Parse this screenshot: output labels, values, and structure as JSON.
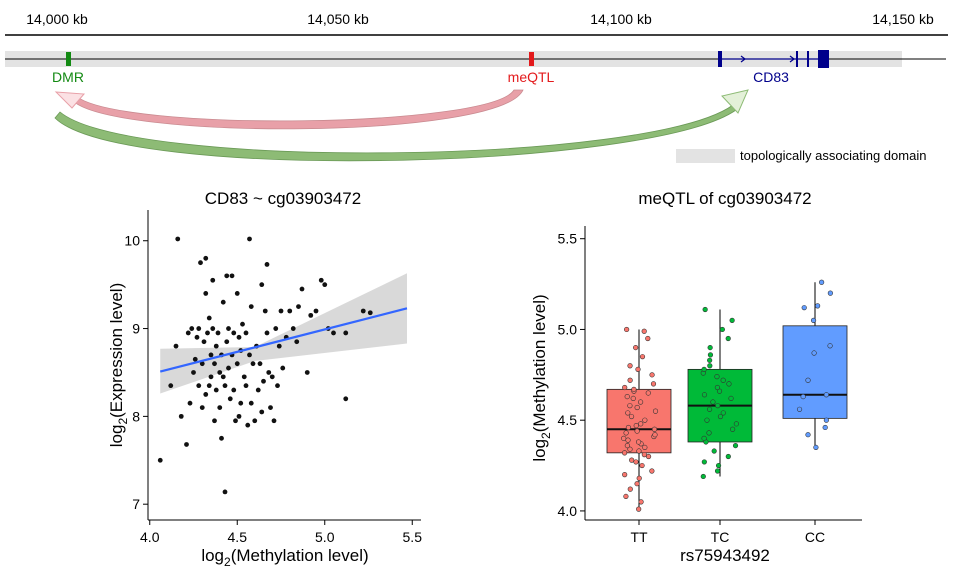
{
  "genome_track": {
    "tick_labels": [
      "14,000 kb",
      "14,050 kb",
      "14,100 kb",
      "14,150 kb"
    ],
    "tick_positions_kb": [
      14000,
      14050,
      14100,
      14150
    ],
    "minor_tick_positions_kb": [
      14025,
      14075,
      14125
    ],
    "features": [
      {
        "label": "DMR",
        "position_kb": 14000,
        "color": "#138a13"
      },
      {
        "label": "meQTL",
        "position_kb": 14084,
        "color": "#e31a1c"
      },
      {
        "label": "CD83",
        "position_kb": 14117,
        "color": "#00008b"
      }
    ],
    "arrows": [
      {
        "from": "meQTL",
        "to": "DMR",
        "color": "#e8a0a8"
      },
      {
        "from": "DMR",
        "to": "CD83",
        "color": "#8dbb75"
      }
    ],
    "legend_label": "topologically associating domain",
    "tad_color": "#e3e3e3"
  },
  "chart_data": [
    {
      "type": "scatter",
      "title": "CD83 ~ cg03903472",
      "xlabel_base": "log",
      "xlabel_sub": "2",
      "xlabel_rest": "(Methylation level)",
      "ylabel_base": "log",
      "ylabel_sub": "2",
      "ylabel_rest": "(Expression level)",
      "xlim": [
        3.99,
        5.55
      ],
      "ylim": [
        6.82,
        10.35
      ],
      "xticks": [
        4.0,
        4.5,
        5.0,
        5.5
      ],
      "xtick_labels": [
        "4.0",
        "4.5",
        "5.0",
        "5.5"
      ],
      "yticks": [
        7,
        8,
        9,
        10
      ],
      "ytick_labels": [
        "7",
        "8",
        "9",
        "10"
      ],
      "point_color": "#111111",
      "fit_line": {
        "x": [
          4.06,
          5.47
        ],
        "y": [
          8.51,
          9.23
        ],
        "color": "#3366ff"
      },
      "ci_band": {
        "x": [
          4.06,
          4.6,
          5.47
        ],
        "lower": [
          8.26,
          8.63,
          8.83
        ],
        "upper": [
          8.77,
          8.79,
          9.63
        ],
        "color": "#cccccc"
      },
      "points": [
        [
          4.06,
          7.5
        ],
        [
          4.12,
          8.35
        ],
        [
          4.16,
          10.02
        ],
        [
          4.18,
          8.0
        ],
        [
          4.21,
          7.68
        ],
        [
          4.15,
          8.8
        ],
        [
          4.23,
          8.15
        ],
        [
          4.22,
          8.95
        ],
        [
          4.24,
          9.0
        ],
        [
          4.25,
          8.5
        ],
        [
          4.26,
          8.65
        ],
        [
          4.27,
          8.9
        ],
        [
          4.28,
          8.35
        ],
        [
          4.28,
          9.0
        ],
        [
          4.29,
          9.75
        ],
        [
          4.3,
          8.1
        ],
        [
          4.3,
          8.6
        ],
        [
          4.31,
          8.85
        ],
        [
          4.32,
          9.8
        ],
        [
          4.32,
          9.4
        ],
        [
          4.32,
          8.25
        ],
        [
          4.33,
          8.95
        ],
        [
          4.34,
          9.12
        ],
        [
          4.34,
          8.35
        ],
        [
          4.35,
          8.7
        ],
        [
          4.35,
          8.45
        ],
        [
          4.36,
          9.55
        ],
        [
          4.36,
          9.0
        ],
        [
          4.37,
          8.6
        ],
        [
          4.37,
          7.95
        ],
        [
          4.38,
          8.8
        ],
        [
          4.38,
          8.3
        ],
        [
          4.39,
          8.95
        ],
        [
          4.4,
          8.5
        ],
        [
          4.4,
          8.1
        ],
        [
          4.41,
          8.7
        ],
        [
          4.41,
          7.75
        ],
        [
          4.42,
          9.3
        ],
        [
          4.42,
          8.45
        ],
        [
          4.43,
          7.14
        ],
        [
          4.43,
          8.35
        ],
        [
          4.44,
          9.6
        ],
        [
          4.44,
          8.85
        ],
        [
          4.45,
          9.0
        ],
        [
          4.45,
          8.55
        ],
        [
          4.46,
          8.2
        ],
        [
          4.47,
          9.6
        ],
        [
          4.47,
          8.7
        ],
        [
          4.48,
          8.95
        ],
        [
          4.48,
          8.3
        ],
        [
          4.49,
          7.95
        ],
        [
          4.5,
          9.4
        ],
        [
          4.5,
          8.6
        ],
        [
          4.51,
          8.0
        ],
        [
          4.51,
          8.9
        ],
        [
          4.52,
          8.75
        ],
        [
          4.52,
          8.15
        ],
        [
          4.53,
          9.05
        ],
        [
          4.54,
          8.45
        ],
        [
          4.55,
          8.35
        ],
        [
          4.55,
          8.95
        ],
        [
          4.56,
          7.9
        ],
        [
          4.57,
          10.02
        ],
        [
          4.57,
          8.7
        ],
        [
          4.58,
          8.15
        ],
        [
          4.58,
          9.25
        ],
        [
          4.59,
          8.6
        ],
        [
          4.6,
          7.95
        ],
        [
          4.61,
          8.8
        ],
        [
          4.62,
          8.3
        ],
        [
          4.63,
          8.6
        ],
        [
          4.64,
          9.5
        ],
        [
          4.64,
          8.05
        ],
        [
          4.65,
          8.4
        ],
        [
          4.66,
          9.2
        ],
        [
          4.67,
          9.73
        ],
        [
          4.67,
          8.95
        ],
        [
          4.68,
          8.5
        ],
        [
          4.69,
          8.1
        ],
        [
          4.7,
          8.45
        ],
        [
          4.71,
          7.95
        ],
        [
          4.72,
          9.0
        ],
        [
          4.73,
          8.35
        ],
        [
          4.74,
          8.8
        ],
        [
          4.75,
          9.2
        ],
        [
          4.76,
          8.55
        ],
        [
          4.78,
          8.9
        ],
        [
          4.8,
          9.2
        ],
        [
          4.82,
          9.0
        ],
        [
          4.84,
          8.85
        ],
        [
          4.85,
          9.25
        ],
        [
          4.87,
          9.45
        ],
        [
          4.9,
          8.5
        ],
        [
          4.92,
          9.15
        ],
        [
          4.95,
          9.2
        ],
        [
          4.98,
          9.55
        ],
        [
          5.0,
          9.5
        ],
        [
          5.02,
          9.0
        ],
        [
          5.05,
          8.95
        ],
        [
          5.12,
          8.95
        ],
        [
          5.12,
          8.2
        ],
        [
          5.22,
          9.2
        ],
        [
          5.26,
          9.18
        ]
      ]
    },
    {
      "type": "box",
      "title": "meQTL of cg03903472",
      "xlabel": "rs75943492",
      "ylabel_base": "log",
      "ylabel_sub": "2",
      "ylabel_rest": "(Methylation level)",
      "ylim": [
        3.95,
        5.57
      ],
      "yticks": [
        4.0,
        4.5,
        5.0,
        5.5
      ],
      "ytick_labels": [
        "4.0",
        "4.5",
        "5.0",
        "5.5"
      ],
      "categories": [
        "TT",
        "TC",
        "CC"
      ],
      "boxes": [
        {
          "category": "TT",
          "color": "#f8766d",
          "min": 4.01,
          "q1": 4.32,
          "median": 4.45,
          "q3": 4.67,
          "max": 5.0
        },
        {
          "category": "TC",
          "color": "#00ba38",
          "min": 4.19,
          "q1": 4.38,
          "median": 4.58,
          "q3": 4.78,
          "max": 5.11
        },
        {
          "category": "CC",
          "color": "#619cff",
          "min": 4.35,
          "q1": 4.51,
          "median": 4.64,
          "q3": 5.02,
          "max": 5.26
        }
      ],
      "jitter_points": {
        "TT": [
          4.01,
          4.05,
          4.08,
          4.12,
          4.15,
          4.18,
          4.2,
          4.22,
          4.25,
          4.27,
          4.28,
          4.3,
          4.31,
          4.32,
          4.33,
          4.34,
          4.35,
          4.36,
          4.37,
          4.38,
          4.39,
          4.4,
          4.41,
          4.42,
          4.43,
          4.44,
          4.45,
          4.46,
          4.47,
          4.48,
          4.5,
          4.52,
          4.54,
          4.55,
          4.57,
          4.58,
          4.6,
          4.62,
          4.63,
          4.65,
          4.66,
          4.67,
          4.68,
          4.7,
          4.72,
          4.75,
          4.78,
          4.8,
          4.85,
          4.9,
          4.95,
          4.99,
          5.0
        ],
        "TC": [
          4.19,
          4.22,
          4.25,
          4.27,
          4.3,
          4.33,
          4.36,
          4.38,
          4.4,
          4.43,
          4.45,
          4.48,
          4.5,
          4.52,
          4.54,
          4.56,
          4.58,
          4.6,
          4.62,
          4.64,
          4.66,
          4.68,
          4.7,
          4.72,
          4.74,
          4.76,
          4.78,
          4.8,
          4.83,
          4.86,
          4.9,
          4.95,
          5.0,
          5.05,
          5.11
        ],
        "CC": [
          4.35,
          4.42,
          4.46,
          4.5,
          4.56,
          4.63,
          4.64,
          4.72,
          4.87,
          4.91,
          5.05,
          5.12,
          5.13,
          5.2,
          5.26
        ]
      }
    }
  ]
}
